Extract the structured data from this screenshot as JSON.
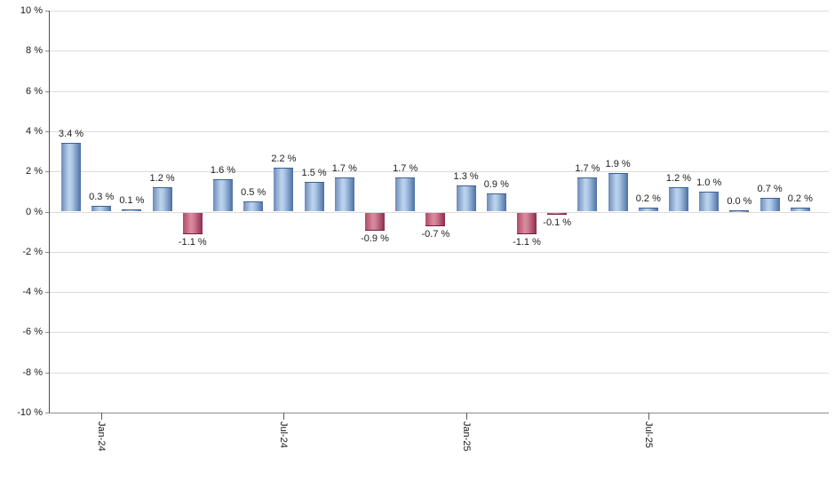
{
  "chart_data": {
    "type": "bar",
    "title": "",
    "xlabel": "",
    "ylabel": "",
    "ylim": [
      -10,
      10
    ],
    "ytick_step": 2,
    "grid": true,
    "legend": false,
    "y_tick_labels": [
      "10 %",
      "8 %",
      "6 %",
      "4 %",
      "2 %",
      "0 %",
      "-2 %",
      "-4 %",
      "-6 %",
      "-8 %",
      "-10 %"
    ],
    "bars": [
      {
        "value": 3.4,
        "label": "3.4 %"
      },
      {
        "value": 0.3,
        "label": "0.3 %"
      },
      {
        "value": 0.1,
        "label": "0.1 %"
      },
      {
        "value": 1.2,
        "label": "1.2 %"
      },
      {
        "value": -1.1,
        "label": "-1.1 %"
      },
      {
        "value": 1.6,
        "label": "1.6 %"
      },
      {
        "value": 0.5,
        "label": "0.5 %"
      },
      {
        "value": 2.2,
        "label": "2.2 %"
      },
      {
        "value": 1.5,
        "label": "1.5 %"
      },
      {
        "value": 1.7,
        "label": "1.7 %"
      },
      {
        "value": -0.9,
        "label": "-0.9 %"
      },
      {
        "value": 1.7,
        "label": "1.7 %"
      },
      {
        "value": -0.7,
        "label": "-0.7 %"
      },
      {
        "value": 1.3,
        "label": "1.3 %"
      },
      {
        "value": 0.9,
        "label": "0.9 %"
      },
      {
        "value": -1.1,
        "label": "-1.1 %"
      },
      {
        "value": -0.1,
        "label": "-0.1 %"
      },
      {
        "value": 1.7,
        "label": "1.7 %"
      },
      {
        "value": 1.9,
        "label": "1.9 %"
      },
      {
        "value": 0.2,
        "label": "0.2 %"
      },
      {
        "value": 1.2,
        "label": "1.2 %"
      },
      {
        "value": 1.0,
        "label": "1.0 %"
      },
      {
        "value": 0.0,
        "label": "0.0 %"
      },
      {
        "value": 0.7,
        "label": "0.7 %"
      },
      {
        "value": 0.2,
        "label": "0.2 %"
      }
    ],
    "x_ticks": [
      {
        "bar_index": 1,
        "label": "Jan-24"
      },
      {
        "bar_index": 7,
        "label": "Jul-24"
      },
      {
        "bar_index": 13,
        "label": "Jan-25"
      },
      {
        "bar_index": 19,
        "label": "Jul-25"
      }
    ],
    "colors": {
      "positive_bar": "#8fb2dc",
      "positive_bar_edge": "#4d70a2",
      "negative_bar": "#bf4a68",
      "negative_bar_edge": "#8c2d4d",
      "grid": "#dcdcdc",
      "axis": "#4d4d4d",
      "text": "#1a1a1a"
    }
  }
}
